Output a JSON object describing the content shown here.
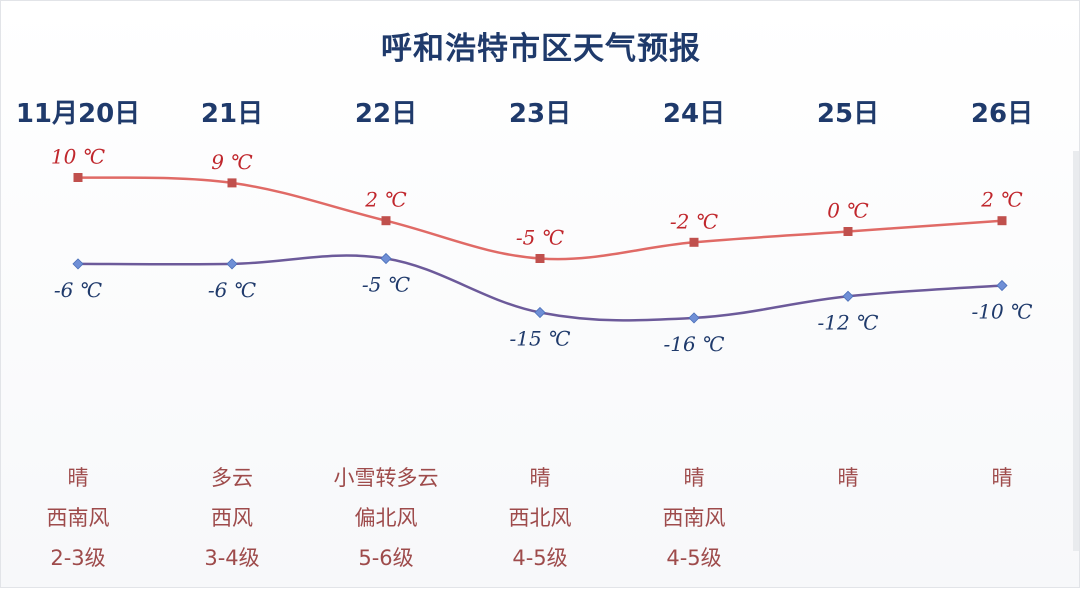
{
  "chart_data": {
    "type": "line",
    "title": "呼和浩特市区天气预报",
    "categories": [
      "11月20日",
      "21日",
      "22日",
      "23日",
      "24日",
      "25日",
      "26日"
    ],
    "series": [
      {
        "key": "high",
        "values": [
          10,
          9,
          2,
          -5,
          -2,
          0,
          2
        ],
        "labels": [
          "10 ℃",
          "9 ℃",
          "2 ℃",
          "-5 ℃",
          "-2 ℃",
          "0 ℃",
          "2 ℃"
        ],
        "line_color": "#e06a66",
        "marker_color": "#c0504d",
        "label_color": "#c0272d",
        "marker": "square"
      },
      {
        "key": "low",
        "values": [
          -6,
          -6,
          -5,
          -15,
          -16,
          -12,
          -10
        ],
        "labels": [
          "-6 ℃",
          "-6 ℃",
          "-5 ℃",
          "-15 ℃",
          "-16 ℃",
          "-12 ℃",
          "-10 ℃"
        ],
        "line_color": "#6c5a9a",
        "marker_color": "#6f8fd6",
        "label_color": "#1f3a6b",
        "marker": "diamond"
      }
    ],
    "weather": [
      "晴",
      "多云",
      "小雪转多云",
      "晴",
      "晴",
      "晴",
      "晴"
    ],
    "wind": [
      "西南风",
      "西风",
      "偏北风",
      "西北风",
      "西南风",
      "",
      ""
    ],
    "wind_level": [
      "2-3级",
      "3-4级",
      "5-6级",
      "4-5级",
      "4-5级",
      "",
      ""
    ],
    "grid": false,
    "legend": "none"
  }
}
